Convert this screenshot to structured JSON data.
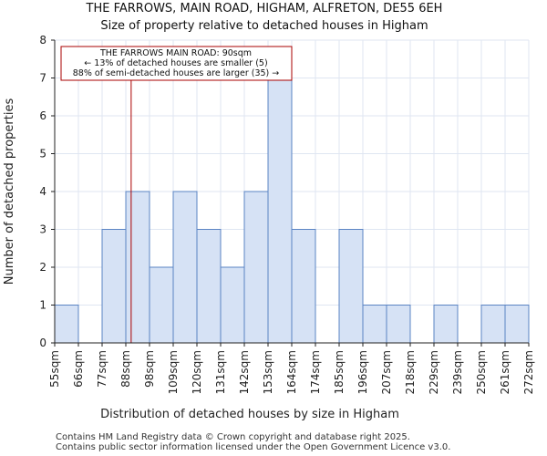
{
  "chart_data": {
    "type": "bar",
    "title": "THE FARROWS, MAIN ROAD, HIGHAM, ALFRETON, DE55 6EH",
    "subtitle": "Size of property relative to detached houses in Higham",
    "xlabel": "Distribution of detached houses by size in Higham",
    "ylabel": "Number of detached properties",
    "bin_edges": [
      55,
      66,
      77,
      88,
      98,
      109,
      120,
      131,
      142,
      153,
      164,
      174,
      185,
      196,
      207,
      218,
      229,
      239,
      250,
      261,
      272
    ],
    "tick_labels": [
      "55sqm",
      "66sqm",
      "77sqm",
      "88sqm",
      "98sqm",
      "109sqm",
      "120sqm",
      "131sqm",
      "142sqm",
      "153sqm",
      "164sqm",
      "174sqm",
      "185sqm",
      "196sqm",
      "207sqm",
      "218sqm",
      "229sqm",
      "239sqm",
      "250sqm",
      "261sqm",
      "272sqm"
    ],
    "values": [
      1,
      0,
      3,
      4,
      2,
      4,
      3,
      2,
      4,
      7,
      3,
      0,
      3,
      1,
      1,
      0,
      1,
      0,
      1,
      1
    ],
    "ylim": [
      0,
      8
    ],
    "yticks": [
      0,
      1,
      2,
      3,
      4,
      5,
      6,
      7,
      8
    ],
    "grid": true,
    "property_marker": {
      "value": 90,
      "label": "THE FARROWS MAIN ROAD: 90sqm"
    },
    "annotation_lines": [
      "THE FARROWS MAIN ROAD: 90sqm",
      "← 13% of detached houses are smaller (5)",
      "88% of semi-detached houses are larger (35) →"
    ],
    "colors": {
      "bar_fill": "#d6e2f5",
      "bar_edge": "#5b84c4",
      "marker": "#aa0000",
      "grid": "#dfe6f2"
    }
  },
  "footer": {
    "line1": "Contains HM Land Registry data © Crown copyright and database right 2025.",
    "line2": "Contains public sector information licensed under the Open Government Licence v3.0."
  }
}
